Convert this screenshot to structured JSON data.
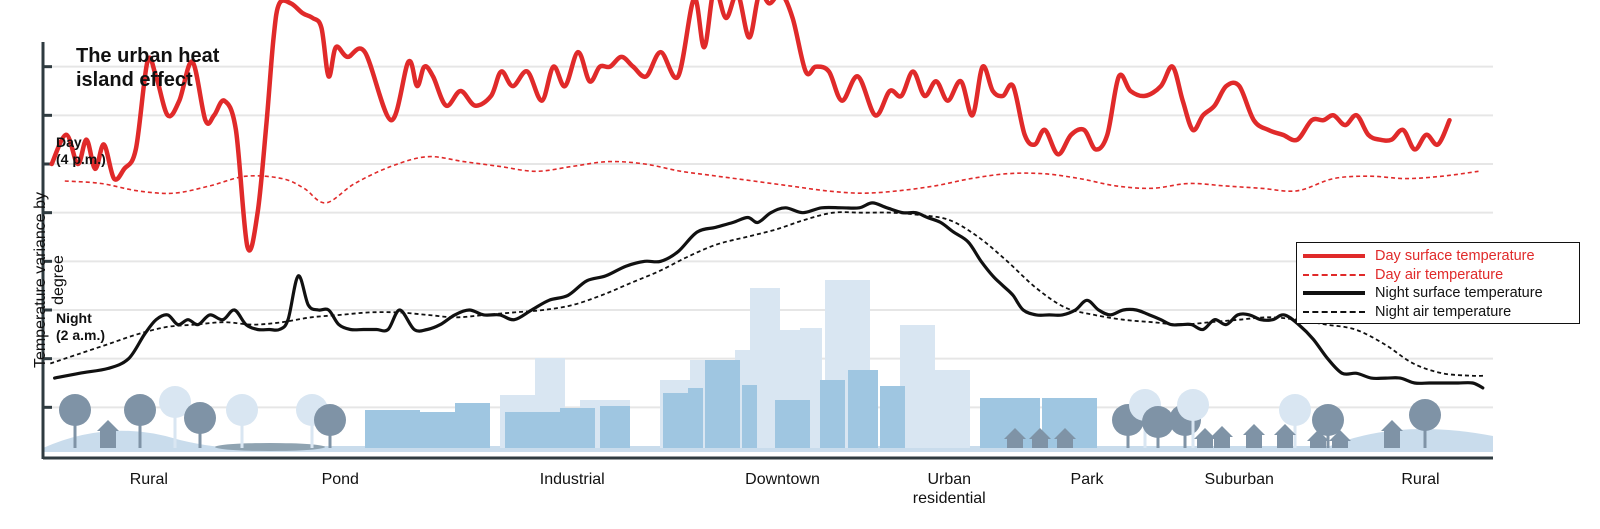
{
  "title": "The urban heat island effect",
  "day_label": "Day\n(4 p.m.)",
  "night_label": "Night\n(2 a.m.)",
  "colors": {
    "day": "#e02a2a",
    "night": "#111111",
    "grid": "#e6e6e6",
    "axis": "#2f3b40",
    "city_light": "#d9e6f2",
    "city_mid": "#9fc6e1",
    "city_dark": "#7f93a6",
    "ground": "#c9dcec"
  },
  "chart_data": {
    "type": "line",
    "title": "The urban heat island effect",
    "ylabel": "Temperature variance by degree",
    "xlabel": "",
    "ylim": [
      0,
      9
    ],
    "xlim": [
      0,
      100
    ],
    "grid": true,
    "legend_position": "right",
    "categories": [
      "Rural",
      "Pond",
      "Industrial",
      "Downtown",
      "Urban residential",
      "Park",
      "Suburban",
      "Rural"
    ],
    "category_x": [
      7.3,
      20.5,
      36.5,
      51.0,
      62.5,
      72.0,
      82.5,
      95.0
    ],
    "series": [
      {
        "name": "Day surface temperature",
        "style": "solid",
        "x": [
          0.6,
          1.6,
          2.4,
          3.0,
          3.6,
          4.2,
          4.9,
          5.6,
          6.4,
          7.2,
          7.8,
          8.6,
          9.4,
          10.3,
          11.2,
          11.8,
          12.5,
          13.3,
          14.1,
          14.8,
          15.4,
          15.9,
          16.3,
          17.1,
          17.9,
          18.6,
          19.2,
          19.7,
          20.2,
          21.0,
          22.2,
          24.0,
          25.2,
          25.8,
          26.3,
          26.9,
          27.8,
          28.8,
          29.8,
          30.9,
          31.6,
          32.4,
          33.4,
          34.4,
          35.2,
          36.0,
          36.9,
          37.7,
          38.4,
          39.1,
          39.9,
          40.7,
          41.6,
          42.6,
          43.8,
          44.9,
          45.6,
          46.3,
          47.1,
          47.9,
          48.7,
          49.4,
          50.1,
          50.9,
          51.7,
          52.6,
          53.3,
          54.2,
          55.1,
          56.2,
          57.4,
          58.4,
          59.2,
          60.0,
          60.8,
          61.6,
          62.4,
          63.3,
          64.1,
          64.8,
          65.5,
          66.2,
          66.9,
          67.7,
          68.4,
          69.1,
          70.0,
          70.9,
          71.8,
          72.6,
          73.4,
          74.2,
          75.0,
          76.0,
          77.1,
          77.9,
          78.6,
          79.3,
          80.0,
          80.8,
          81.6,
          82.5,
          83.5,
          84.5,
          85.5,
          86.5,
          87.5,
          88.3,
          89.0,
          89.8,
          90.6,
          91.4,
          92.2,
          93.0,
          93.8,
          94.6,
          95.4,
          96.2,
          97.0
        ],
        "y": [
          6.0,
          6.6,
          6.0,
          6.5,
          5.9,
          6.4,
          5.7,
          5.9,
          6.3,
          8.1,
          7.8,
          7.0,
          7.3,
          8.1,
          6.9,
          7.0,
          7.3,
          6.7,
          4.3,
          5.0,
          6.8,
          8.6,
          9.3,
          9.3,
          9.1,
          9.0,
          8.8,
          7.8,
          8.4,
          8.2,
          8.3,
          6.9,
          8.1,
          7.6,
          8.0,
          7.8,
          7.2,
          7.5,
          7.2,
          7.4,
          7.9,
          7.6,
          7.9,
          7.3,
          8.0,
          7.6,
          8.3,
          7.7,
          8.0,
          8.0,
          8.2,
          8.0,
          7.8,
          8.3,
          7.8,
          9.4,
          8.4,
          9.6,
          9.0,
          9.5,
          8.6,
          9.5,
          9.3,
          9.5,
          9.0,
          7.9,
          8.0,
          7.9,
          7.3,
          7.8,
          7.0,
          7.5,
          7.4,
          7.9,
          7.4,
          7.7,
          7.3,
          7.7,
          7.0,
          8.0,
          7.5,
          7.4,
          7.6,
          6.6,
          6.4,
          6.7,
          6.2,
          6.6,
          6.7,
          6.3,
          6.6,
          7.8,
          7.5,
          7.4,
          7.6,
          8.0,
          7.3,
          6.7,
          7.0,
          7.2,
          7.6,
          7.6,
          6.9,
          6.7,
          6.6,
          6.5,
          6.9,
          6.9,
          7.0,
          6.8,
          7.0,
          6.6,
          6.5,
          6.5,
          6.7,
          6.3,
          6.6,
          6.4,
          6.9
        ]
      },
      {
        "name": "Day air temperature",
        "style": "dashed",
        "x": [
          1.5,
          4.0,
          6.5,
          9.0,
          11.5,
          14.0,
          16.5,
          18.0,
          19.5,
          21.5,
          24.0,
          26.5,
          29.0,
          31.5,
          34.0,
          36.5,
          39.0,
          41.5,
          44.0,
          46.5,
          49.0,
          51.5,
          54.0,
          56.5,
          59.0,
          61.5,
          64.0,
          66.5,
          69.0,
          71.5,
          74.0,
          76.5,
          79.0,
          81.5,
          84.0,
          86.5,
          89.0,
          91.5,
          94.0,
          96.5,
          99.0
        ],
        "y": [
          5.65,
          5.6,
          5.45,
          5.4,
          5.55,
          5.75,
          5.7,
          5.5,
          5.2,
          5.6,
          5.95,
          6.15,
          6.05,
          5.95,
          5.85,
          5.95,
          6.05,
          6.0,
          5.85,
          5.75,
          5.65,
          5.55,
          5.45,
          5.4,
          5.45,
          5.55,
          5.7,
          5.8,
          5.8,
          5.7,
          5.55,
          5.5,
          5.6,
          5.55,
          5.5,
          5.45,
          5.7,
          5.75,
          5.7,
          5.75,
          5.85
        ]
      },
      {
        "name": "Night surface temperature",
        "style": "solid",
        "x": [
          0.8,
          2.5,
          4.5,
          5.9,
          7.0,
          7.8,
          8.6,
          9.3,
          10.0,
          10.7,
          11.5,
          12.4,
          13.2,
          14.0,
          14.8,
          15.6,
          16.3,
          16.9,
          17.6,
          18.3,
          19.0,
          19.7,
          20.4,
          21.2,
          22.1,
          23.0,
          23.8,
          24.6,
          25.6,
          26.5,
          27.4,
          28.4,
          29.4,
          30.4,
          31.5,
          32.5,
          33.7,
          34.9,
          36.2,
          37.5,
          38.8,
          40.2,
          41.5,
          42.6,
          43.8,
          45.1,
          46.4,
          47.6,
          48.6,
          49.3,
          50.2,
          51.2,
          52.4,
          53.7,
          55.1,
          56.3,
          57.2,
          58.2,
          59.3,
          60.2,
          61.0,
          61.9,
          62.8,
          63.8,
          64.7,
          65.5,
          66.2,
          66.9,
          67.6,
          68.5,
          69.4,
          70.3,
          71.2,
          72.0,
          72.8,
          73.6,
          74.5,
          75.4,
          76.3,
          77.1,
          77.8,
          78.5,
          79.2,
          80.0,
          80.8,
          81.6,
          82.4,
          83.2,
          84.0,
          84.8,
          85.6,
          86.6,
          87.6,
          88.6,
          89.6,
          90.6,
          91.6,
          92.6,
          93.6,
          94.6,
          95.6,
          96.6,
          97.6,
          98.6,
          99.3
        ],
        "y": [
          1.6,
          1.7,
          1.8,
          2.0,
          2.5,
          2.8,
          2.9,
          2.7,
          2.8,
          2.7,
          2.9,
          2.8,
          3.0,
          2.7,
          2.6,
          2.6,
          2.6,
          2.8,
          3.7,
          3.1,
          3.0,
          3.0,
          2.7,
          2.6,
          2.6,
          2.6,
          2.6,
          3.0,
          2.6,
          2.6,
          2.7,
          2.9,
          3.0,
          2.9,
          2.9,
          2.8,
          3.0,
          3.2,
          3.3,
          3.6,
          3.7,
          3.9,
          4.0,
          4.0,
          4.2,
          4.6,
          4.7,
          4.8,
          4.9,
          4.8,
          5.0,
          5.1,
          5.0,
          5.1,
          5.1,
          5.1,
          5.2,
          5.1,
          5.0,
          5.0,
          4.9,
          4.8,
          4.6,
          4.4,
          4.0,
          3.7,
          3.5,
          3.3,
          3.0,
          2.9,
          2.9,
          2.9,
          3.0,
          3.2,
          3.0,
          2.9,
          3.0,
          3.0,
          2.9,
          2.8,
          2.7,
          2.7,
          2.7,
          2.6,
          2.8,
          2.7,
          2.9,
          2.9,
          2.8,
          2.8,
          2.9,
          2.7,
          2.4,
          2.0,
          1.7,
          1.7,
          1.6,
          1.6,
          1.6,
          1.5,
          1.5,
          1.5,
          1.5,
          1.5,
          1.4
        ]
      },
      {
        "name": "Night air temperature",
        "style": "dashed",
        "x": [
          0.5,
          2.5,
          4.5,
          6.5,
          8.5,
          10.5,
          12.5,
          14.5,
          16.5,
          18.5,
          20.5,
          22.5,
          24.5,
          26.5,
          28.5,
          30.5,
          32.5,
          34.5,
          36.5,
          38.5,
          40.5,
          42.5,
          44.5,
          46.5,
          48.5,
          50.5,
          52.5,
          54.5,
          56.5,
          58.5,
          60.5,
          62.5,
          64.5,
          66.5,
          68.5,
          70.5,
          72.5,
          74.5,
          76.5,
          78.5,
          80.5,
          82.5,
          84.5,
          86.5,
          88.5,
          90.5,
          92.5,
          94.5,
          96.5,
          98.5,
          99.5
        ],
        "y": [
          1.9,
          2.1,
          2.3,
          2.5,
          2.65,
          2.7,
          2.75,
          2.7,
          2.75,
          2.85,
          2.9,
          2.95,
          2.95,
          2.9,
          2.85,
          2.9,
          2.95,
          3.0,
          3.1,
          3.3,
          3.55,
          3.8,
          4.1,
          4.35,
          4.5,
          4.65,
          4.85,
          5.0,
          5.0,
          5.0,
          4.95,
          4.85,
          4.5,
          4.0,
          3.45,
          3.05,
          2.9,
          2.8,
          2.75,
          2.7,
          2.75,
          2.8,
          2.85,
          2.8,
          2.7,
          2.6,
          2.3,
          1.9,
          1.7,
          1.65,
          1.65
        ]
      }
    ]
  }
}
